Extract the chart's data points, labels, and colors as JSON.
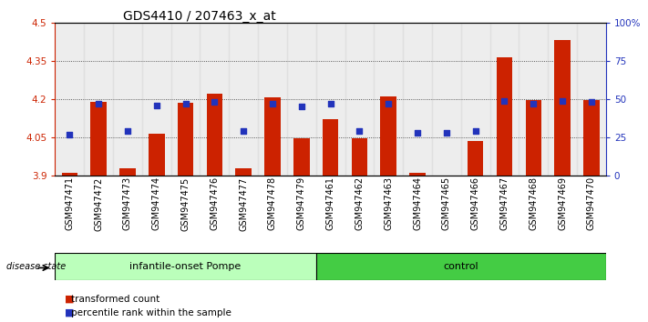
{
  "title": "GDS4410 / 207463_x_at",
  "samples": [
    "GSM947471",
    "GSM947472",
    "GSM947473",
    "GSM947474",
    "GSM947475",
    "GSM947476",
    "GSM947477",
    "GSM947478",
    "GSM947479",
    "GSM947461",
    "GSM947462",
    "GSM947463",
    "GSM947464",
    "GSM947465",
    "GSM947466",
    "GSM947467",
    "GSM947468",
    "GSM947469",
    "GSM947470"
  ],
  "red_values": [
    3.91,
    4.19,
    3.93,
    4.065,
    4.185,
    4.22,
    3.93,
    4.205,
    4.047,
    4.12,
    4.045,
    4.21,
    3.91,
    3.9,
    4.035,
    4.365,
    4.195,
    4.43,
    4.195
  ],
  "blue_percentiles": [
    27,
    47,
    29,
    46,
    47,
    48,
    29,
    47,
    45,
    47,
    29,
    47,
    28,
    28,
    29,
    49,
    47,
    49,
    48
  ],
  "ylim_min": 3.9,
  "ylim_max": 4.5,
  "y2lim_min": 0,
  "y2lim_max": 100,
  "yticks": [
    3.9,
    4.05,
    4.2,
    4.35,
    4.5
  ],
  "ytick_labels": [
    "3.9",
    "4.05",
    "4.2",
    "4.35",
    "4.5"
  ],
  "y2ticks": [
    0,
    25,
    50,
    75,
    100
  ],
  "y2tick_labels": [
    "0",
    "25",
    "50",
    "75",
    "100%"
  ],
  "bar_color": "#CC2200",
  "dot_color": "#2233BB",
  "bar_bottom": 3.9,
  "group1_label": "infantile-onset Pompe",
  "group2_label": "control",
  "group1_color": "#BBFFBB",
  "group2_color": "#44CC44",
  "group1_count": 9,
  "group2_count": 10,
  "disease_state_label": "disease state",
  "legend_red": "transformed count",
  "legend_blue": "percentile rank within the sample",
  "left_tick_color": "#CC2200",
  "right_tick_color": "#2233BB",
  "title_fontsize": 10,
  "tick_fontsize": 7.5,
  "col_bg_color": "#DDDDDD",
  "grid_color": "#333333"
}
